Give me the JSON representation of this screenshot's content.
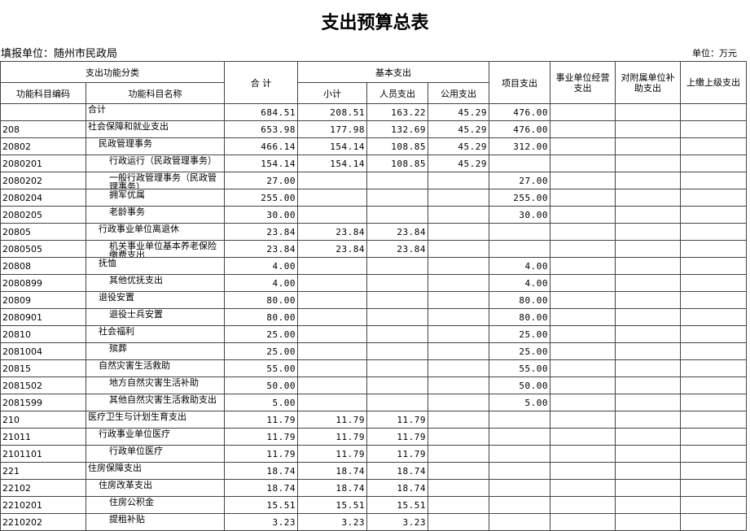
{
  "header": {
    "title": "支出预算总表",
    "org": "填报单位：随州市民政局",
    "unit": "单位：万元"
  },
  "table": {
    "columns": {
      "group_function": "支出功能分类",
      "code": "功能科目编码",
      "name": "功能科目名称",
      "total": "合  计",
      "group_basic": "基本支出",
      "subtotal": "小计",
      "personnel": "人员支出",
      "public": "公用支出",
      "project": "项目支出",
      "business": "事业单位经营支出",
      "subsidy": "对附属单位补助支出",
      "upper": "上缴上级支出"
    },
    "rows": [
      [
        null,
        "合计",
        "684.51",
        "208.51",
        "163.22",
        "45.29",
        "476.00",
        null,
        null,
        null
      ],
      [
        "208",
        "社会保障和就业支出",
        "653.98",
        "177.98",
        "132.69",
        "45.29",
        "476.00",
        null,
        null,
        null
      ],
      [
        "20802",
        "民政管理事务",
        "466.14",
        "154.14",
        "108.85",
        "45.29",
        "312.00",
        null,
        null,
        null
      ],
      [
        "2080201",
        "行政运行（民政管理事务）",
        "154.14",
        "154.14",
        "108.85",
        "45.29",
        null,
        null,
        null,
        null
      ],
      [
        "2080202",
        "一般行政管理事务（民政管理事务）",
        "27.00",
        null,
        null,
        null,
        "27.00",
        null,
        null,
        null
      ],
      [
        "2080204",
        "拥军优属",
        "255.00",
        null,
        null,
        null,
        "255.00",
        null,
        null,
        null
      ],
      [
        "2080205",
        "老龄事务",
        "30.00",
        null,
        null,
        null,
        "30.00",
        null,
        null,
        null
      ],
      [
        "20805",
        "行政事业单位离退休",
        "23.84",
        "23.84",
        "23.84",
        null,
        null,
        null,
        null,
        null
      ],
      [
        "2080505",
        "机关事业单位基本养老保险缴费支出",
        "23.84",
        "23.84",
        "23.84",
        null,
        null,
        null,
        null,
        null
      ],
      [
        "20808",
        "抚恤",
        "4.00",
        null,
        null,
        null,
        "4.00",
        null,
        null,
        null
      ],
      [
        "2080899",
        "其他优抚支出",
        "4.00",
        null,
        null,
        null,
        "4.00",
        null,
        null,
        null
      ],
      [
        "20809",
        "退役安置",
        "80.00",
        null,
        null,
        null,
        "80.00",
        null,
        null,
        null
      ],
      [
        "2080901",
        "退役士兵安置",
        "80.00",
        null,
        null,
        null,
        "80.00",
        null,
        null,
        null
      ],
      [
        "20810",
        "社会福利",
        "25.00",
        null,
        null,
        null,
        "25.00",
        null,
        null,
        null
      ],
      [
        "2081004",
        "殡葬",
        "25.00",
        null,
        null,
        null,
        "25.00",
        null,
        null,
        null
      ],
      [
        "20815",
        "自然灾害生活救助",
        "55.00",
        null,
        null,
        null,
        "55.00",
        null,
        null,
        null
      ],
      [
        "2081502",
        "地方自然灾害生活补助",
        "50.00",
        null,
        null,
        null,
        "50.00",
        null,
        null,
        null
      ],
      [
        "2081599",
        "其他自然灾害生活救助支出",
        "5.00",
        null,
        null,
        null,
        "5.00",
        null,
        null,
        null
      ],
      [
        "210",
        "医疗卫生与计划生育支出",
        "11.79",
        "11.79",
        "11.79",
        null,
        null,
        null,
        null,
        null
      ],
      [
        "21011",
        "行政事业单位医疗",
        "11.79",
        "11.79",
        "11.79",
        null,
        null,
        null,
        null,
        null
      ],
      [
        "2101101",
        "行政单位医疗",
        "11.79",
        "11.79",
        "11.79",
        null,
        null,
        null,
        null,
        null
      ],
      [
        "221",
        "住房保障支出",
        "18.74",
        "18.74",
        "18.74",
        null,
        null,
        null,
        null,
        null
      ],
      [
        "22102",
        "住房改革支出",
        "18.74",
        "18.74",
        "18.74",
        null,
        null,
        null,
        null,
        null
      ],
      [
        "2210201",
        "住房公积金",
        "15.51",
        "15.51",
        "15.51",
        null,
        null,
        null,
        null,
        null
      ],
      [
        "2210202",
        "提租补贴",
        "3.23",
        "3.23",
        "3.23",
        null,
        null,
        null,
        null,
        null
      ]
    ]
  }
}
